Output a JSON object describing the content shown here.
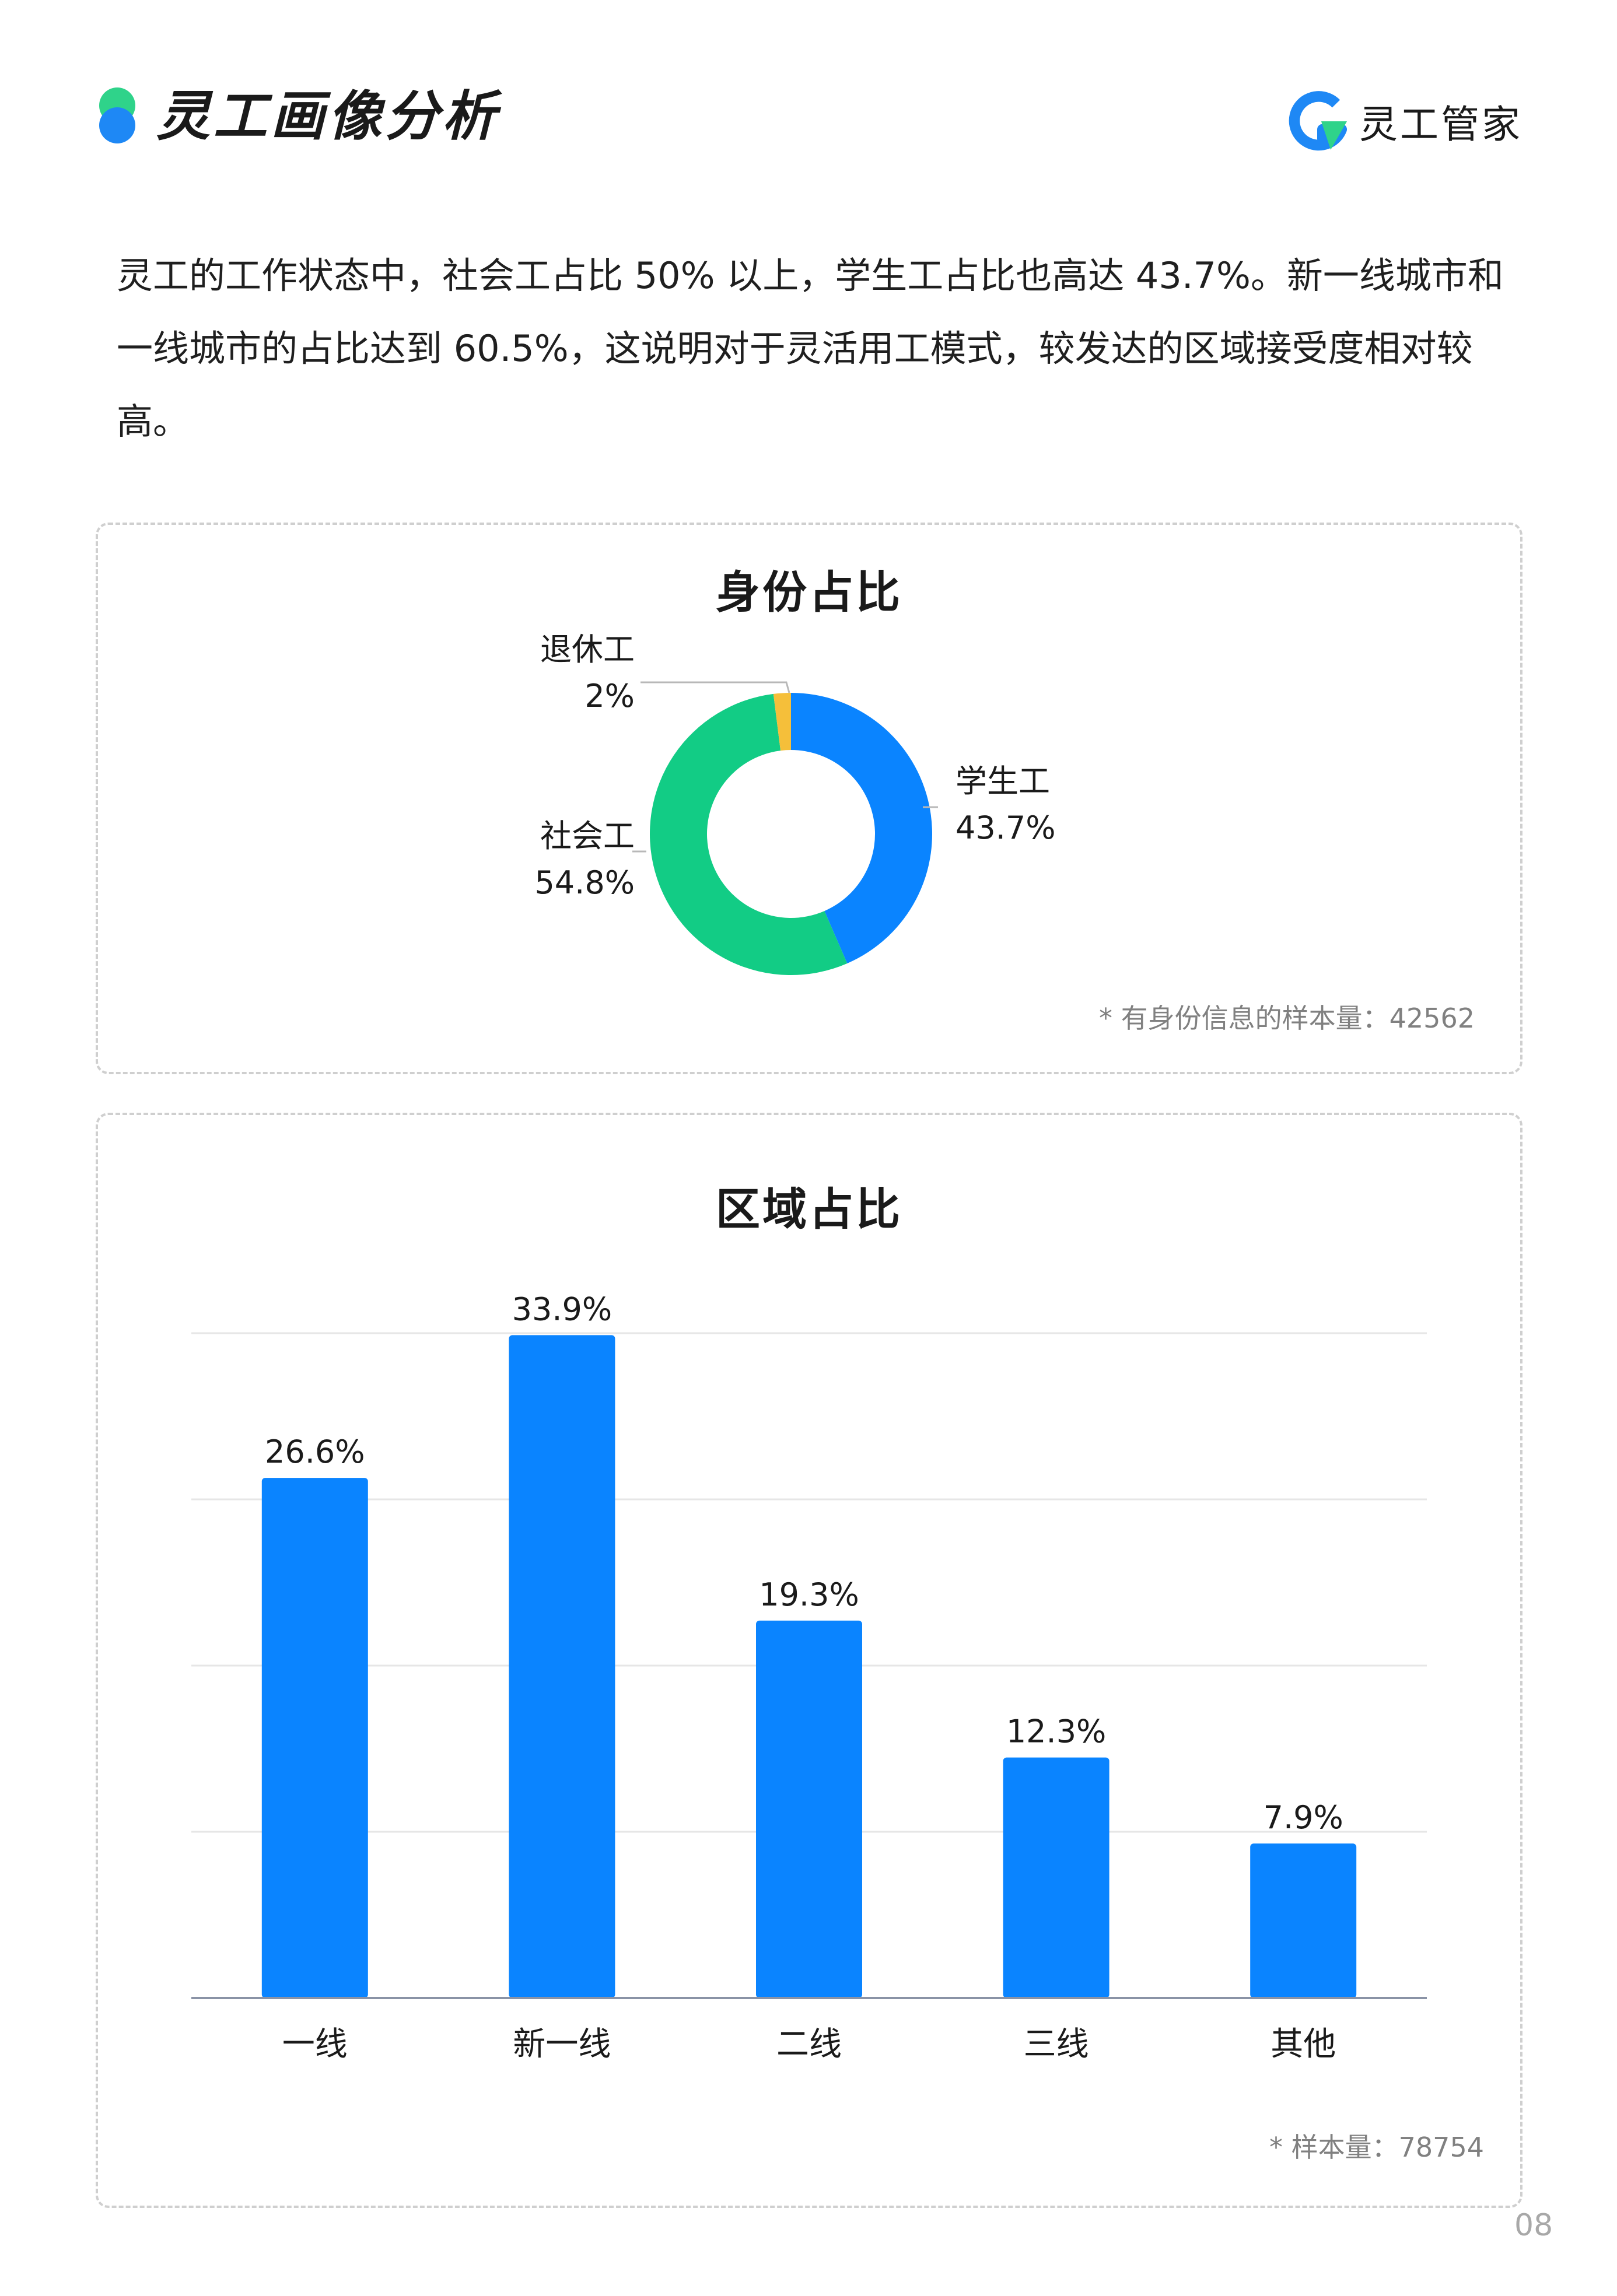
{
  "header": {
    "title": "灵工画像分析",
    "brand_name": "灵工管家",
    "bullet_colors": [
      "#2fd38a",
      "#1e88f5"
    ]
  },
  "intro_text": "灵工的工作状态中，社会工占比 50% 以上，学生工占比也高达 43.7%。新一线城市和一线城市的占比达到 60.5%，这说明对于灵活用工模式，较发达的区域接受度相对较高。",
  "chart_data": [
    {
      "type": "pie",
      "title": "身份占比",
      "slices": [
        {
          "label": "学生工",
          "value": 43.7,
          "value_text": "43.7%",
          "color": "#0a84ff"
        },
        {
          "label": "社会工",
          "value": 54.8,
          "value_text": "54.8%",
          "color": "#12cc85"
        },
        {
          "label": "退休工",
          "value": 2,
          "value_text": "2%",
          "color": "#f5bf3a"
        }
      ],
      "legend": "none",
      "footnote": "* 有身份信息的样本量：42562"
    },
    {
      "type": "bar",
      "title": "区域占比",
      "categories": [
        "一线",
        "新一线",
        "二线",
        "三线",
        "其他"
      ],
      "values": [
        26.6,
        33.9,
        19.3,
        12.3,
        7.9
      ],
      "value_labels": [
        "26.6%",
        "33.9%",
        "19.3%",
        "12.3%",
        "7.9%"
      ],
      "ylim": [
        0,
        34
      ],
      "grid": true,
      "bar_color": "#0a84ff",
      "footnote": "* 样本量：78754"
    }
  ],
  "page_number": "08"
}
